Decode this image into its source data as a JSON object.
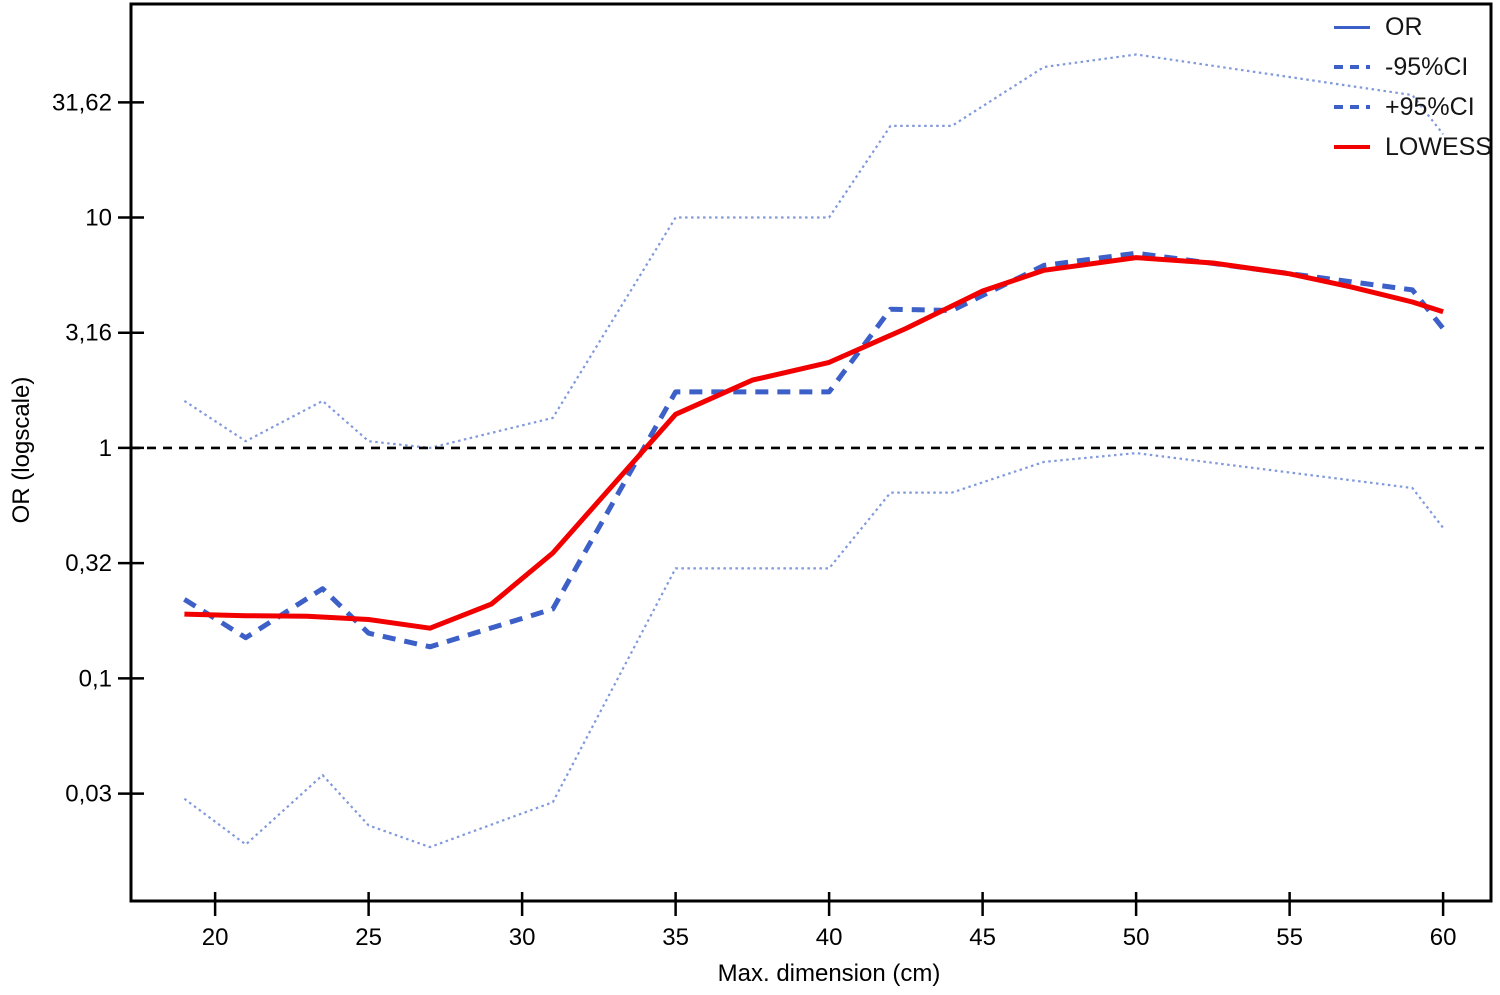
{
  "chart_data": {
    "type": "line",
    "title": "",
    "xlabel": "Max. dimension (cm)",
    "ylabel": "OR (logscale)",
    "y_scale": "log",
    "grid": false,
    "xlim": [
      17.26,
      61.56
    ],
    "ylim": [
      0.0108,
      84.5
    ],
    "x_ticks": [
      {
        "value": 20,
        "label": "20"
      },
      {
        "value": 25,
        "label": "25"
      },
      {
        "value": 30,
        "label": "30"
      },
      {
        "value": 35,
        "label": "35"
      },
      {
        "value": 40,
        "label": "40"
      },
      {
        "value": 45,
        "label": "45"
      },
      {
        "value": 50,
        "label": "50"
      },
      {
        "value": 55,
        "label": "55"
      },
      {
        "value": 60,
        "label": "60"
      }
    ],
    "y_ticks": [
      {
        "value": 31.6228,
        "label": "31,62"
      },
      {
        "value": 10,
        "label": "10"
      },
      {
        "value": 3.1623,
        "label": "3,16"
      },
      {
        "value": 1,
        "label": "1"
      },
      {
        "value": 0.3162,
        "label": "0,32"
      },
      {
        "value": 0.1,
        "label": "0,1"
      },
      {
        "value": 0.0316,
        "label": "0,03"
      }
    ],
    "reference_line": {
      "value": 1,
      "color": "#000000",
      "style": "dashed"
    },
    "series": [
      {
        "name": "OR",
        "color": "#3c5fc8",
        "dash": "dash",
        "width": 5,
        "x": [
          19,
          21,
          23.5,
          25,
          27,
          31,
          35,
          40,
          42,
          44,
          47,
          50,
          59,
          60
        ],
        "values": [
          0.22,
          0.15,
          0.245,
          0.157,
          0.137,
          0.2,
          1.75,
          1.75,
          4.0,
          3.95,
          6.2,
          7.0,
          4.85,
          3.3
        ]
      },
      {
        "name": "-95%CI",
        "color": "#8099dc",
        "dash": "dot",
        "width": 2.2,
        "x": [
          19,
          21,
          23.5,
          25,
          27,
          31,
          35,
          40,
          42,
          44,
          47,
          50,
          59,
          60
        ],
        "values": [
          0.03,
          0.019,
          0.038,
          0.023,
          0.0185,
          0.029,
          0.3,
          0.3,
          0.64,
          0.64,
          0.87,
          0.95,
          0.67,
          0.45
        ]
      },
      {
        "name": "+95%CI",
        "color": "#8099dc",
        "dash": "dot",
        "width": 2.2,
        "x": [
          19,
          21,
          23.5,
          25,
          27,
          31,
          35,
          40,
          42,
          44,
          47,
          50,
          59,
          60
        ],
        "values": [
          1.6,
          1.07,
          1.6,
          1.07,
          1.0,
          1.35,
          10.0,
          10.0,
          25.0,
          25.0,
          45.0,
          51.0,
          34.0,
          23.0
        ]
      },
      {
        "name": "LOWESS",
        "color": "#f20000",
        "dash": "solid",
        "width": 5,
        "x": [
          19,
          21,
          23,
          25,
          27,
          29,
          31,
          33,
          35,
          37.5,
          40,
          42.5,
          45,
          47,
          50,
          52.5,
          55,
          57,
          59,
          60
        ],
        "values": [
          0.19,
          0.187,
          0.186,
          0.18,
          0.165,
          0.21,
          0.35,
          0.7,
          1.4,
          1.97,
          2.35,
          3.3,
          4.8,
          5.9,
          6.7,
          6.35,
          5.7,
          5.0,
          4.3,
          3.9
        ]
      }
    ]
  },
  "legend": {
    "items": [
      {
        "label": "OR",
        "color": "#3c5fc8",
        "style": "solid",
        "weight": 3
      },
      {
        "label": "-95%CI",
        "color": "#3c5fc8",
        "style": "dashed",
        "weight": 4
      },
      {
        "label": "+95%CI",
        "color": "#3c5fc8",
        "style": "dashed",
        "weight": 4
      },
      {
        "label": "LOWESS",
        "color": "#f20000",
        "style": "solid",
        "weight": 4
      }
    ]
  }
}
